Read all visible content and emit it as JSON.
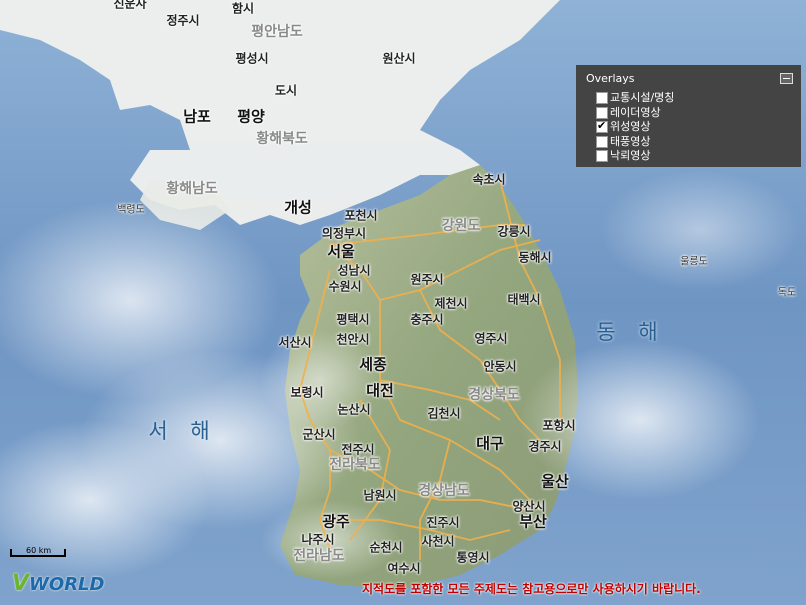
{
  "map": {
    "overlays_panel": {
      "title": "Overlays",
      "items": [
        {
          "label": "교통시설/명칭",
          "checked": false
        },
        {
          "label": "레이더영상",
          "checked": false
        },
        {
          "label": "위성영상",
          "checked": true
        },
        {
          "label": "태풍영상",
          "checked": false
        },
        {
          "label": "낙뢰영상",
          "checked": false
        }
      ]
    },
    "labels": {
      "sinuiju": "신운사",
      "jeongju": "정주시",
      "hamheung": "함시",
      "south_pyongan": "평안남도",
      "pyeongseong": "평성시",
      "wonsan": "원산시",
      "dosi": "도시",
      "nampo": "남포",
      "pyongyang": "평양",
      "north_hwanghae": "황해북도",
      "south_hwanghae": "황해남도",
      "baengnyeongdo": "백령도",
      "kaesong": "개성",
      "sokcho": "속초시",
      "pocheon": "포천시",
      "gangwon": "강원도",
      "uijeongbu": "의정부시",
      "gangneung": "강릉시",
      "seoul": "서울",
      "seongnam": "성남시",
      "donghae": "동해시",
      "ulleungdo": "울릉도",
      "dokdo": "독도",
      "suwon": "수원시",
      "wonju": "원주시",
      "jecheon": "제천시",
      "taebaek": "태백시",
      "pyeongtaek": "평택시",
      "chungju": "충주시",
      "east_sea": "동 해",
      "seosan": "서산시",
      "cheonan": "천안시",
      "yeongju": "영주시",
      "sejong": "세종",
      "andong": "안동시",
      "daejeon": "대전",
      "boryeong": "보령시",
      "north_gyeongsang": "경상북도",
      "nonsan": "논산시",
      "gimcheon": "김천시",
      "yellow_sea": "서 해",
      "gunsan": "군산시",
      "pohang": "포항시",
      "jeonju": "전주시",
      "daegu": "대구",
      "gyeongju": "경주시",
      "north_jeolla": "전라북도",
      "ulsan": "울산",
      "namwon": "남원시",
      "south_gyeongsang": "경상남도",
      "yangsan": "양산시",
      "busan": "부산",
      "gwangju": "광주",
      "jinju": "진주시",
      "naju": "나주시",
      "sacheon": "사천시",
      "suncheon": "순천시",
      "south_jeolla": "전라남도",
      "tongyeong": "통영시",
      "yeosu": "여수시"
    },
    "scale_label": "60 km",
    "logo": {
      "v": "V",
      "rest": "WORLD"
    },
    "notice": "지적도를 포함한 모든 주제도는 참고용으로만 사용하시기 바랍니다."
  },
  "colors": {
    "sea": "#6f95c3",
    "land_north": "#f2f2ee",
    "land_south": "#9cac86",
    "roads": "#f2b04a",
    "panel": "#444444",
    "notice": "#c00000"
  }
}
